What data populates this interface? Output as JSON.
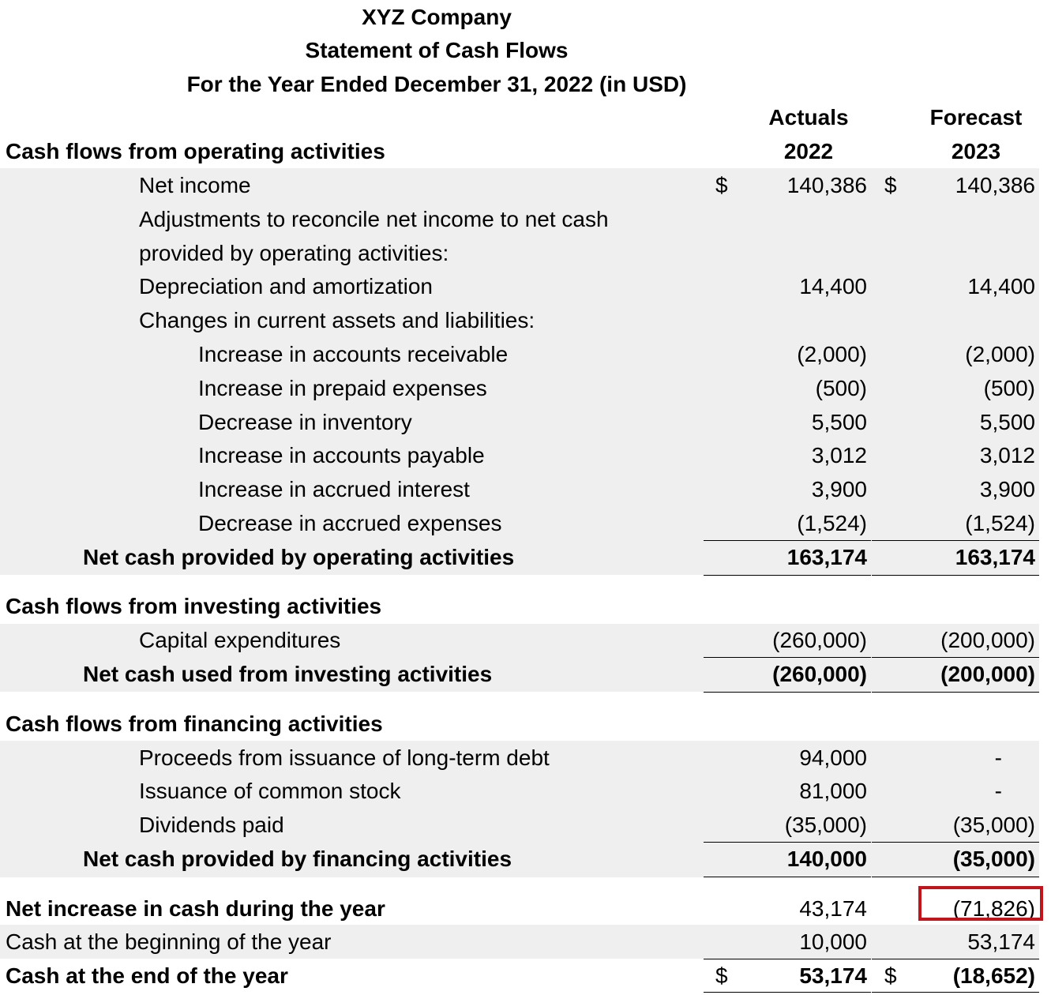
{
  "header": {
    "company": "XYZ Company",
    "statement": "Statement of Cash Flows",
    "period": "For the Year Ended December 31, 2022 (in USD)"
  },
  "columns": {
    "actuals_label": "Actuals",
    "actuals_year": "2022",
    "forecast_label": "Forecast",
    "forecast_year": "2023"
  },
  "currency_symbol": "$",
  "operating": {
    "title": "Cash flows from operating activities",
    "net_income": {
      "label": "Net income",
      "a": "140,386",
      "f": "140,386"
    },
    "adjustments_1": "Adjustments to reconcile net income to net cash",
    "adjustments_2": "provided by operating activities:",
    "depreciation": {
      "label": "Depreciation and amortization",
      "a": "14,400",
      "f": "14,400"
    },
    "changes_label": "Changes in current assets and liabilities:",
    "items": [
      {
        "label": "Increase in accounts receivable",
        "a": "(2,000)",
        "f": "(2,000)"
      },
      {
        "label": "Increase in prepaid expenses",
        "a": "(500)",
        "f": "(500)"
      },
      {
        "label": "Decrease in inventory",
        "a": "5,500",
        "f": "5,500"
      },
      {
        "label": "Increase in accounts payable",
        "a": "3,012",
        "f": "3,012"
      },
      {
        "label": "Increase in accrued interest",
        "a": "3,900",
        "f": "3,900"
      },
      {
        "label": "Decrease in accrued expenses",
        "a": "(1,524)",
        "f": "(1,524)"
      }
    ],
    "total": {
      "label": "Net cash provided by operating activities",
      "a": "163,174",
      "f": "163,174"
    }
  },
  "investing": {
    "title": "Cash flows from investing activities",
    "capex": {
      "label": "Capital expenditures",
      "a": "(260,000)",
      "f": "(200,000)"
    },
    "total": {
      "label": "Net cash used from investing activities",
      "a": "(260,000)",
      "f": "(200,000)"
    }
  },
  "financing": {
    "title": "Cash flows from financing activities",
    "items": [
      {
        "label": "Proceeds from issuance of long-term debt",
        "a": "94,000",
        "f": "-"
      },
      {
        "label": "Issuance of common stock",
        "a": "81,000",
        "f": "-"
      },
      {
        "label": "Dividends paid",
        "a": "(35,000)",
        "f": "(35,000)"
      }
    ],
    "total": {
      "label": "Net cash provided by financing activities",
      "a": "140,000",
      "f": "(35,000)"
    }
  },
  "summary": {
    "net_increase": {
      "label": "Net increase in cash during the year",
      "a": "43,174",
      "f": "(71,826)"
    },
    "beginning": {
      "label": "Cash at the beginning of the year",
      "a": "10,000",
      "f": "53,174"
    },
    "ending": {
      "label": "Cash at the end of the year",
      "a": "53,174",
      "f": "(18,652)"
    }
  }
}
